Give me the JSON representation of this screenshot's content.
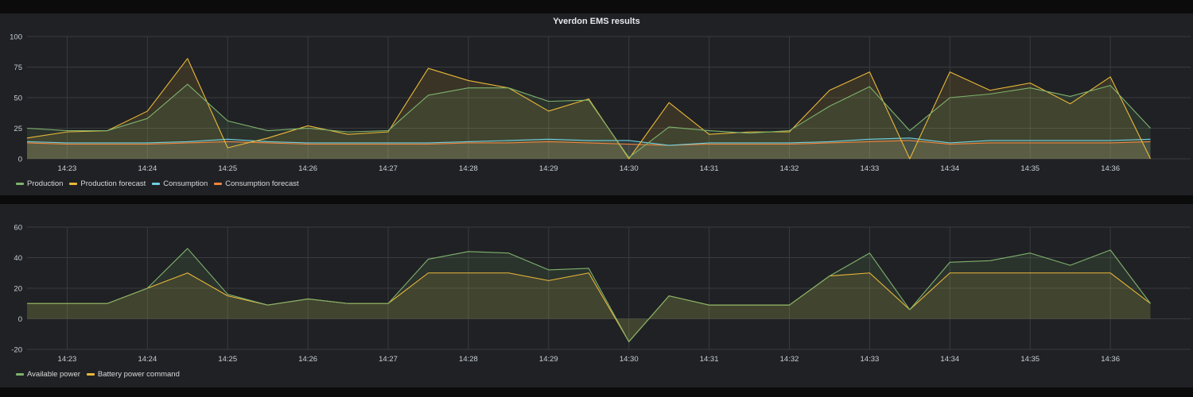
{
  "chart_data": [
    {
      "type": "line",
      "title": "Yverdon EMS results",
      "xlabel": "",
      "ylabel": "",
      "ylim": [
        0,
        100
      ],
      "yticks": [
        0,
        25,
        50,
        75,
        100
      ],
      "x_range": [
        "14:22:30",
        "14:37:00"
      ],
      "xticks": [
        "14:23",
        "14:24",
        "14:25",
        "14:26",
        "14:27",
        "14:28",
        "14:29",
        "14:30",
        "14:31",
        "14:32",
        "14:33",
        "14:34",
        "14:35",
        "14:36"
      ],
      "grid": true,
      "legend_position": "bottom-left",
      "fill": true,
      "series": [
        {
          "name": "Production",
          "color": "#7eb26d",
          "points": [
            [
              "14:22:30",
              25
            ],
            [
              "14:23:00",
              23
            ],
            [
              "14:23:30",
              23
            ],
            [
              "14:24:00",
              33
            ],
            [
              "14:24:30",
              61
            ],
            [
              "14:25:00",
              31
            ],
            [
              "14:25:30",
              23
            ],
            [
              "14:26:00",
              25
            ],
            [
              "14:26:30",
              22
            ],
            [
              "14:27:00",
              23
            ],
            [
              "14:27:30",
              52
            ],
            [
              "14:28:00",
              58
            ],
            [
              "14:28:30",
              58
            ],
            [
              "14:29:00",
              47
            ],
            [
              "14:29:30",
              48
            ],
            [
              "14:30:00",
              1
            ],
            [
              "14:30:30",
              26
            ],
            [
              "14:31:00",
              23
            ],
            [
              "14:31:30",
              21
            ],
            [
              "14:32:00",
              23
            ],
            [
              "14:32:30",
              43
            ],
            [
              "14:33:00",
              59
            ],
            [
              "14:33:30",
              23
            ],
            [
              "14:34:00",
              50
            ],
            [
              "14:34:30",
              53
            ],
            [
              "14:35:00",
              58
            ],
            [
              "14:35:30",
              51
            ],
            [
              "14:36:00",
              60
            ],
            [
              "14:36:30",
              25
            ]
          ]
        },
        {
          "name": "Production forecast",
          "color": "#eab839",
          "points": [
            [
              "14:22:30",
              17
            ],
            [
              "14:23:00",
              22
            ],
            [
              "14:23:30",
              23
            ],
            [
              "14:24:00",
              39
            ],
            [
              "14:24:30",
              82
            ],
            [
              "14:25:00",
              9
            ],
            [
              "14:25:30",
              17
            ],
            [
              "14:26:00",
              27
            ],
            [
              "14:26:30",
              20
            ],
            [
              "14:27:00",
              22
            ],
            [
              "14:27:30",
              74
            ],
            [
              "14:28:00",
              64
            ],
            [
              "14:28:30",
              58
            ],
            [
              "14:29:00",
              39
            ],
            [
              "14:29:30",
              49
            ],
            [
              "14:30:00",
              0
            ],
            [
              "14:30:30",
              46
            ],
            [
              "14:31:00",
              20
            ],
            [
              "14:31:30",
              22
            ],
            [
              "14:32:00",
              22
            ],
            [
              "14:32:30",
              56
            ],
            [
              "14:33:00",
              71
            ],
            [
              "14:33:30",
              0
            ],
            [
              "14:34:00",
              71
            ],
            [
              "14:34:30",
              56
            ],
            [
              "14:35:00",
              62
            ],
            [
              "14:35:30",
              45
            ],
            [
              "14:36:00",
              67
            ],
            [
              "14:36:30",
              0
            ]
          ]
        },
        {
          "name": "Consumption",
          "color": "#6ed0e0",
          "points": [
            [
              "14:22:30",
              14
            ],
            [
              "14:23:00",
              13
            ],
            [
              "14:23:30",
              13
            ],
            [
              "14:24:00",
              13
            ],
            [
              "14:24:30",
              14
            ],
            [
              "14:25:00",
              16
            ],
            [
              "14:25:30",
              14
            ],
            [
              "14:26:00",
              13
            ],
            [
              "14:26:30",
              13
            ],
            [
              "14:27:00",
              13
            ],
            [
              "14:27:30",
              13
            ],
            [
              "14:28:00",
              14
            ],
            [
              "14:28:30",
              15
            ],
            [
              "14:29:00",
              16
            ],
            [
              "14:29:30",
              15
            ],
            [
              "14:30:00",
              15
            ],
            [
              "14:30:30",
              11
            ],
            [
              "14:31:00",
              13
            ],
            [
              "14:31:30",
              13
            ],
            [
              "14:32:00",
              13
            ],
            [
              "14:32:30",
              14
            ],
            [
              "14:33:00",
              16
            ],
            [
              "14:33:30",
              17
            ],
            [
              "14:34:00",
              13
            ],
            [
              "14:34:30",
              15
            ],
            [
              "14:35:00",
              15
            ],
            [
              "14:35:30",
              15
            ],
            [
              "14:36:00",
              15
            ],
            [
              "14:36:30",
              16
            ]
          ]
        },
        {
          "name": "Consumption forecast",
          "color": "#ef843c",
          "points": [
            [
              "14:22:30",
              13
            ],
            [
              "14:23:00",
              12
            ],
            [
              "14:23:30",
              12
            ],
            [
              "14:24:00",
              12
            ],
            [
              "14:24:30",
              13
            ],
            [
              "14:25:00",
              14
            ],
            [
              "14:25:30",
              13
            ],
            [
              "14:26:00",
              12
            ],
            [
              "14:26:30",
              12
            ],
            [
              "14:27:00",
              12
            ],
            [
              "14:27:30",
              12
            ],
            [
              "14:28:00",
              13
            ],
            [
              "14:28:30",
              13
            ],
            [
              "14:29:00",
              14
            ],
            [
              "14:29:30",
              13
            ],
            [
              "14:30:00",
              12
            ],
            [
              "14:30:30",
              11
            ],
            [
              "14:31:00",
              12
            ],
            [
              "14:31:30",
              12
            ],
            [
              "14:32:00",
              12
            ],
            [
              "14:32:30",
              13
            ],
            [
              "14:33:00",
              14
            ],
            [
              "14:33:30",
              15
            ],
            [
              "14:34:00",
              12
            ],
            [
              "14:34:30",
              13
            ],
            [
              "14:35:00",
              13
            ],
            [
              "14:35:30",
              13
            ],
            [
              "14:36:00",
              13
            ],
            [
              "14:36:30",
              14
            ]
          ]
        }
      ]
    },
    {
      "type": "line",
      "title": "",
      "xlabel": "",
      "ylabel": "",
      "ylim": [
        -20,
        60
      ],
      "yticks": [
        -20,
        0,
        20,
        40,
        60
      ],
      "x_range": [
        "14:22:30",
        "14:37:00"
      ],
      "xticks": [
        "14:23",
        "14:24",
        "14:25",
        "14:26",
        "14:27",
        "14:28",
        "14:29",
        "14:30",
        "14:31",
        "14:32",
        "14:33",
        "14:34",
        "14:35",
        "14:36"
      ],
      "grid": true,
      "legend_position": "bottom-left",
      "fill": true,
      "series": [
        {
          "name": "Available power",
          "color": "#7eb26d",
          "points": [
            [
              "14:22:30",
              10
            ],
            [
              "14:23:00",
              10
            ],
            [
              "14:23:30",
              10
            ],
            [
              "14:24:00",
              20
            ],
            [
              "14:24:30",
              46
            ],
            [
              "14:25:00",
              16
            ],
            [
              "14:25:30",
              9
            ],
            [
              "14:26:00",
              13
            ],
            [
              "14:26:30",
              10
            ],
            [
              "14:27:00",
              10
            ],
            [
              "14:27:30",
              39
            ],
            [
              "14:28:00",
              44
            ],
            [
              "14:28:30",
              43
            ],
            [
              "14:29:00",
              32
            ],
            [
              "14:29:30",
              33
            ],
            [
              "14:30:00",
              -15
            ],
            [
              "14:30:30",
              15
            ],
            [
              "14:31:00",
              9
            ],
            [
              "14:31:30",
              9
            ],
            [
              "14:32:00",
              9
            ],
            [
              "14:32:30",
              28
            ],
            [
              "14:33:00",
              43
            ],
            [
              "14:33:30",
              6
            ],
            [
              "14:34:00",
              37
            ],
            [
              "14:34:30",
              38
            ],
            [
              "14:35:00",
              43
            ],
            [
              "14:35:30",
              35
            ],
            [
              "14:36:00",
              45
            ],
            [
              "14:36:30",
              10
            ]
          ]
        },
        {
          "name": "Battery power command",
          "color": "#eab839",
          "points": [
            [
              "14:22:30",
              10
            ],
            [
              "14:23:00",
              10
            ],
            [
              "14:23:30",
              10
            ],
            [
              "14:24:00",
              20
            ],
            [
              "14:24:30",
              30
            ],
            [
              "14:25:00",
              15
            ],
            [
              "14:25:30",
              9
            ],
            [
              "14:26:00",
              13
            ],
            [
              "14:26:30",
              10
            ],
            [
              "14:27:00",
              10
            ],
            [
              "14:27:30",
              30
            ],
            [
              "14:28:00",
              30
            ],
            [
              "14:28:30",
              30
            ],
            [
              "14:29:00",
              25
            ],
            [
              "14:29:30",
              30
            ],
            [
              "14:30:00",
              -15
            ],
            [
              "14:30:30",
              15
            ],
            [
              "14:31:00",
              9
            ],
            [
              "14:31:30",
              9
            ],
            [
              "14:32:00",
              9
            ],
            [
              "14:32:30",
              28
            ],
            [
              "14:33:00",
              30
            ],
            [
              "14:33:30",
              6
            ],
            [
              "14:34:00",
              30
            ],
            [
              "14:34:30",
              30
            ],
            [
              "14:35:00",
              30
            ],
            [
              "14:35:30",
              30
            ],
            [
              "14:36:00",
              30
            ],
            [
              "14:36:30",
              10
            ]
          ]
        }
      ]
    }
  ]
}
